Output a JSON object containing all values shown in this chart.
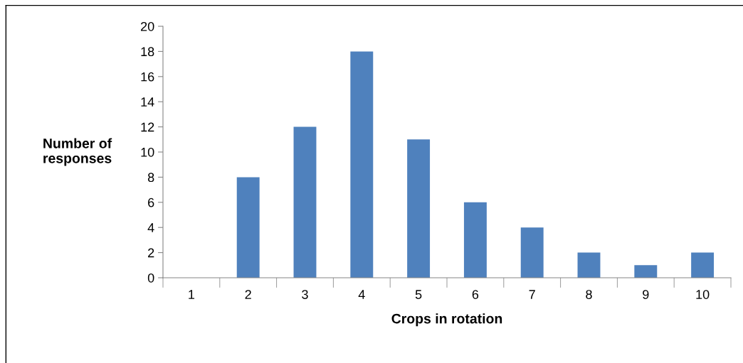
{
  "chart_data": {
    "type": "bar",
    "xlabel": "Crops in rotation",
    "ylabel": "Number of\nresponses",
    "categories": [
      "1",
      "2",
      "3",
      "4",
      "5",
      "6",
      "7",
      "8",
      "9",
      "10"
    ],
    "values": [
      0,
      8,
      12,
      18,
      11,
      6,
      4,
      2,
      1,
      2
    ],
    "color": "#4f81bd",
    "ylim": [
      0,
      20
    ],
    "yticks": [
      0,
      2,
      4,
      6,
      8,
      10,
      12,
      14,
      16,
      18,
      20
    ],
    "grid": false,
    "legend": false
  }
}
